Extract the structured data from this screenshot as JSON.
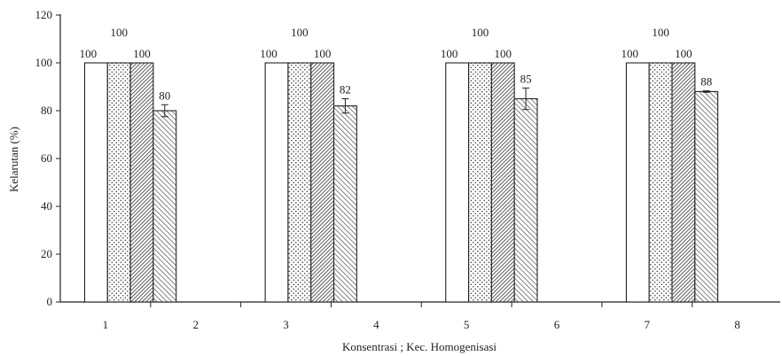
{
  "chart_data": {
    "type": "bar",
    "title": "",
    "xlabel": "Konsentrasi  ; Kec. Homogenisasi",
    "ylabel": "Kelarutan  (%)",
    "ylim": [
      0,
      120
    ],
    "yticks": [
      "0",
      "20",
      "40",
      "60",
      "80",
      "100",
      "120"
    ],
    "categories": [
      "1",
      "2",
      "3",
      "4",
      "5",
      "6",
      "7",
      "8"
    ],
    "grid": false,
    "legend": "none",
    "series": [
      {
        "pattern": "plain",
        "values": [
          100,
          null,
          100,
          null,
          100,
          null,
          100,
          null
        ],
        "labels": [
          "100",
          "",
          "100",
          "",
          "100",
          "",
          "100",
          ""
        ]
      },
      {
        "pattern": "dots",
        "values": [
          100,
          null,
          100,
          null,
          100,
          null,
          100,
          null
        ],
        "labels": [
          "100",
          "",
          "100",
          "",
          "100",
          "",
          "100",
          ""
        ]
      },
      {
        "pattern": "dense-hatch",
        "values": [
          100,
          null,
          100,
          null,
          100,
          null,
          100,
          null
        ],
        "labels": [
          "100",
          "",
          "100",
          "",
          "100",
          "",
          "100",
          ""
        ]
      },
      {
        "pattern": "diag-hatch",
        "values": [
          80,
          null,
          82,
          null,
          85,
          null,
          88,
          null
        ],
        "errors": [
          2.5,
          null,
          3,
          null,
          4.5,
          null,
          0.3,
          null
        ],
        "labels": [
          "80",
          "",
          "82",
          "",
          "85",
          "",
          "88",
          ""
        ]
      }
    ]
  }
}
